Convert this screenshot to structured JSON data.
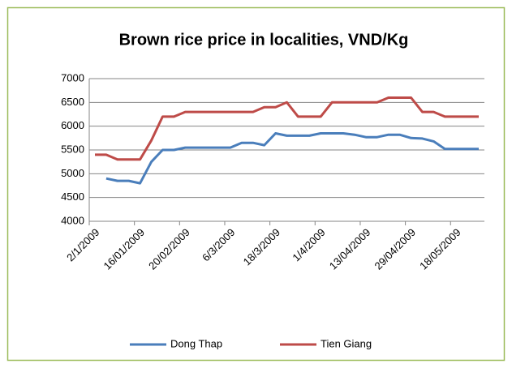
{
  "chart_data": {
    "type": "line",
    "title": "Brown rice price in localities, VND/Kg",
    "categories": [
      "2/1/2009",
      null,
      null,
      null,
      "16/01/2009",
      null,
      null,
      null,
      "20/02/2009",
      null,
      null,
      null,
      "6/3/2009",
      null,
      null,
      null,
      "18/3/2009",
      null,
      null,
      null,
      "1/4/2009",
      null,
      null,
      null,
      "13/04/2009",
      null,
      null,
      null,
      "29/04/2009",
      null,
      null,
      null,
      "18/05/2009",
      null,
      null
    ],
    "series": [
      {
        "name": "Dong Thap",
        "color": "#4a7ebb",
        "values": [
          null,
          4900,
          4850,
          4850,
          4800,
          5250,
          5500,
          5500,
          5550,
          5550,
          5550,
          5550,
          5550,
          5650,
          5650,
          5600,
          5850,
          5800,
          5800,
          5800,
          5850,
          5850,
          5850,
          5820,
          5770,
          5770,
          5820,
          5820,
          5750,
          5740,
          5680,
          5520,
          5520,
          5520,
          5520
        ]
      },
      {
        "name": "Tien Giang",
        "color": "#be4b48",
        "values": [
          5400,
          5400,
          5300,
          5300,
          5300,
          5700,
          6200,
          6200,
          6300,
          6300,
          6300,
          6300,
          6300,
          6300,
          6300,
          6400,
          6400,
          6500,
          6200,
          6200,
          6200,
          6500,
          6500,
          6500,
          6500,
          6500,
          6600,
          6600,
          6600,
          6300,
          6300,
          6200,
          6200,
          6200,
          6200
        ]
      }
    ],
    "ylim": [
      4000,
      7000
    ],
    "yticks": [
      4000,
      4500,
      5000,
      5500,
      6000,
      6500,
      7000
    ],
    "grid": true,
    "legend": "bottom"
  }
}
